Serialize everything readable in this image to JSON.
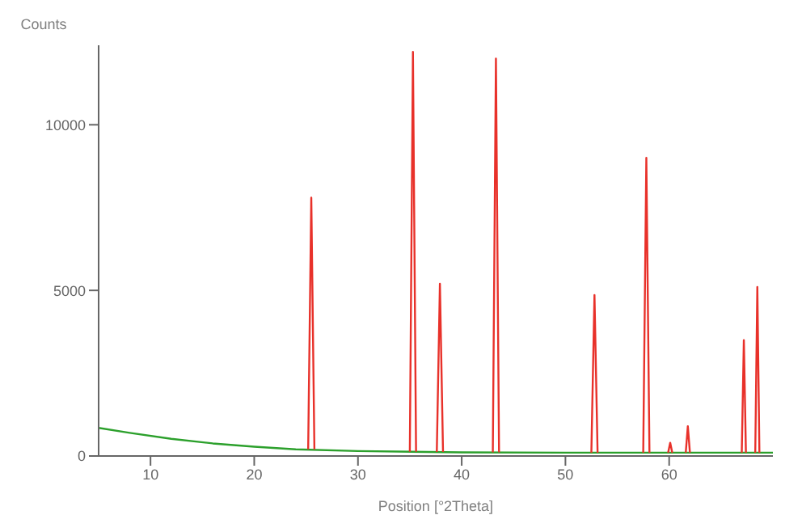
{
  "chart_data": {
    "type": "line",
    "xlabel": "Position [°2Theta]",
    "ylabel": "Counts",
    "xlim": [
      5,
      70
    ],
    "ylim": [
      0,
      12400
    ],
    "xticks": [
      10,
      20,
      30,
      40,
      50,
      60
    ],
    "yticks": [
      0,
      5000,
      10000
    ],
    "marker": "none",
    "line_style": "solid",
    "series": [
      {
        "color": "#2ca02c",
        "x": [
          5,
          8,
          12,
          16,
          20,
          24,
          30,
          40,
          50,
          56,
          65,
          70
        ],
        "values": [
          850,
          700,
          520,
          380,
          280,
          200,
          150,
          110,
          100,
          100,
          100,
          100
        ]
      },
      {
        "color": "#e8312a",
        "x": [
          25.2,
          25.5,
          25.8,
          26,
          35,
          35.3,
          35.6,
          36,
          37.6,
          37.9,
          38.2,
          39,
          43,
          43.3,
          43.6,
          44,
          52.5,
          52.8,
          53.1,
          54,
          57.5,
          57.8,
          58.1,
          59,
          59.9,
          60.1,
          60.3,
          61,
          61.6,
          61.8,
          62,
          63,
          67,
          67.2,
          67.4,
          68,
          68.3,
          68.5,
          68.7
        ],
        "values": [
          200,
          7800,
          200,
          null,
          130,
          12200,
          130,
          null,
          120,
          5200,
          120,
          null,
          110,
          12000,
          110,
          null,
          100,
          4860,
          100,
          null,
          100,
          9000,
          100,
          null,
          100,
          400,
          100,
          null,
          100,
          900,
          100,
          null,
          100,
          3500,
          100,
          null,
          100,
          5100,
          100
        ]
      }
    ]
  }
}
